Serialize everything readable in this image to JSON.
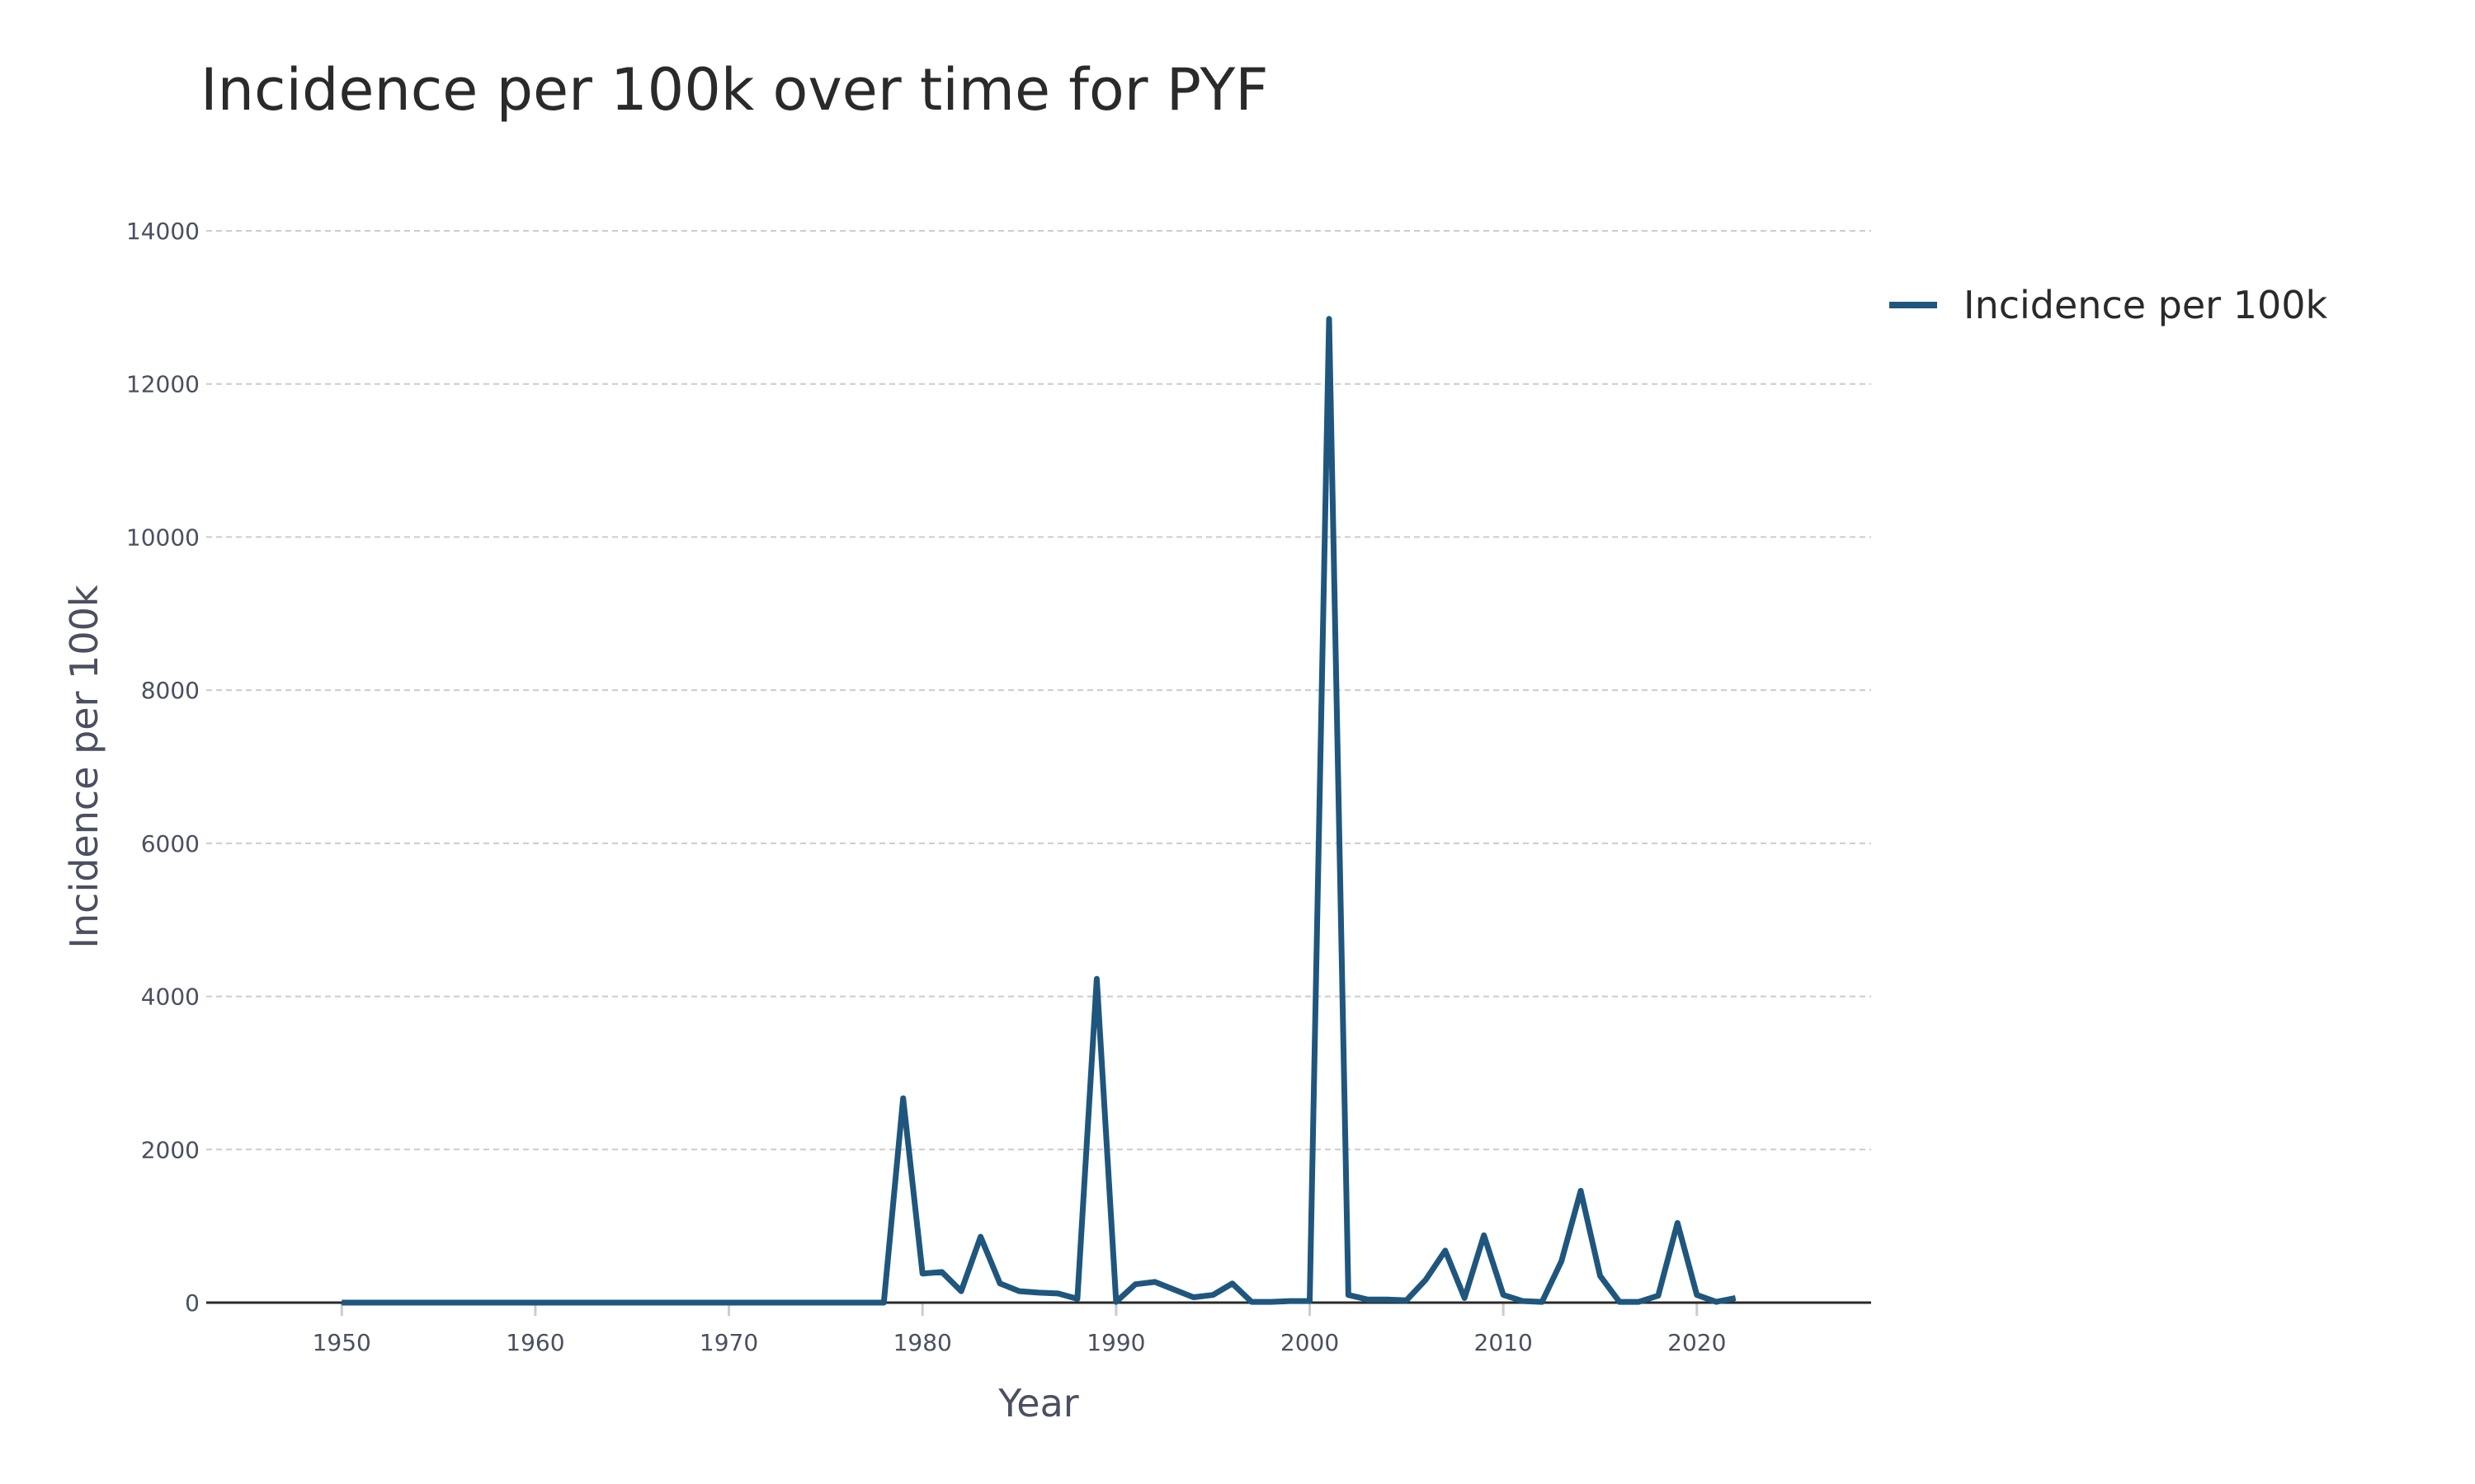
{
  "chart_data": {
    "type": "line",
    "title": "Incidence per 100k over time for PYF",
    "xlabel": "Year",
    "ylabel": "Incidence per 100k",
    "xlim": [
      1943,
      2029
    ],
    "ylim": [
      0,
      14000
    ],
    "x_ticks": [
      1950,
      1960,
      1970,
      1980,
      1990,
      2000,
      2010,
      2020
    ],
    "y_ticks": [
      0,
      2000,
      4000,
      6000,
      8000,
      10000,
      12000,
      14000
    ],
    "grid": "horizontal dashed",
    "legend_position": "top-right",
    "colors": {
      "series": "#1f567d",
      "grid": "#cccccc",
      "axis": "#2a2a2a"
    },
    "series": [
      {
        "name": "Incidence per 100k",
        "x": [
          1950,
          1951,
          1952,
          1953,
          1954,
          1955,
          1956,
          1957,
          1958,
          1959,
          1960,
          1961,
          1962,
          1963,
          1964,
          1965,
          1966,
          1967,
          1968,
          1969,
          1970,
          1971,
          1972,
          1973,
          1974,
          1975,
          1976,
          1977,
          1978,
          1979,
          1980,
          1981,
          1982,
          1983,
          1984,
          1985,
          1986,
          1987,
          1988,
          1989,
          1990,
          1991,
          1992,
          1993,
          1994,
          1995,
          1996,
          1997,
          1998,
          1999,
          2000,
          2001,
          2002,
          2003,
          2004,
          2005,
          2006,
          2007,
          2008,
          2009,
          2010,
          2011,
          2012,
          2013,
          2014,
          2015,
          2016,
          2017,
          2018,
          2019,
          2020,
          2021,
          2022
        ],
        "y": [
          0,
          0,
          0,
          0,
          0,
          0,
          0,
          0,
          0,
          0,
          0,
          0,
          0,
          0,
          0,
          0,
          0,
          0,
          0,
          0,
          0,
          0,
          0,
          0,
          0,
          0,
          0,
          0,
          0,
          2670,
          380,
          400,
          150,
          860,
          250,
          150,
          130,
          120,
          50,
          4230,
          10,
          240,
          270,
          170,
          70,
          100,
          250,
          10,
          10,
          20,
          20,
          12850,
          100,
          40,
          40,
          30,
          300,
          680,
          60,
          880,
          100,
          20,
          10,
          540,
          1460,
          350,
          10,
          10,
          90,
          1040,
          100,
          10,
          60
        ]
      }
    ]
  }
}
